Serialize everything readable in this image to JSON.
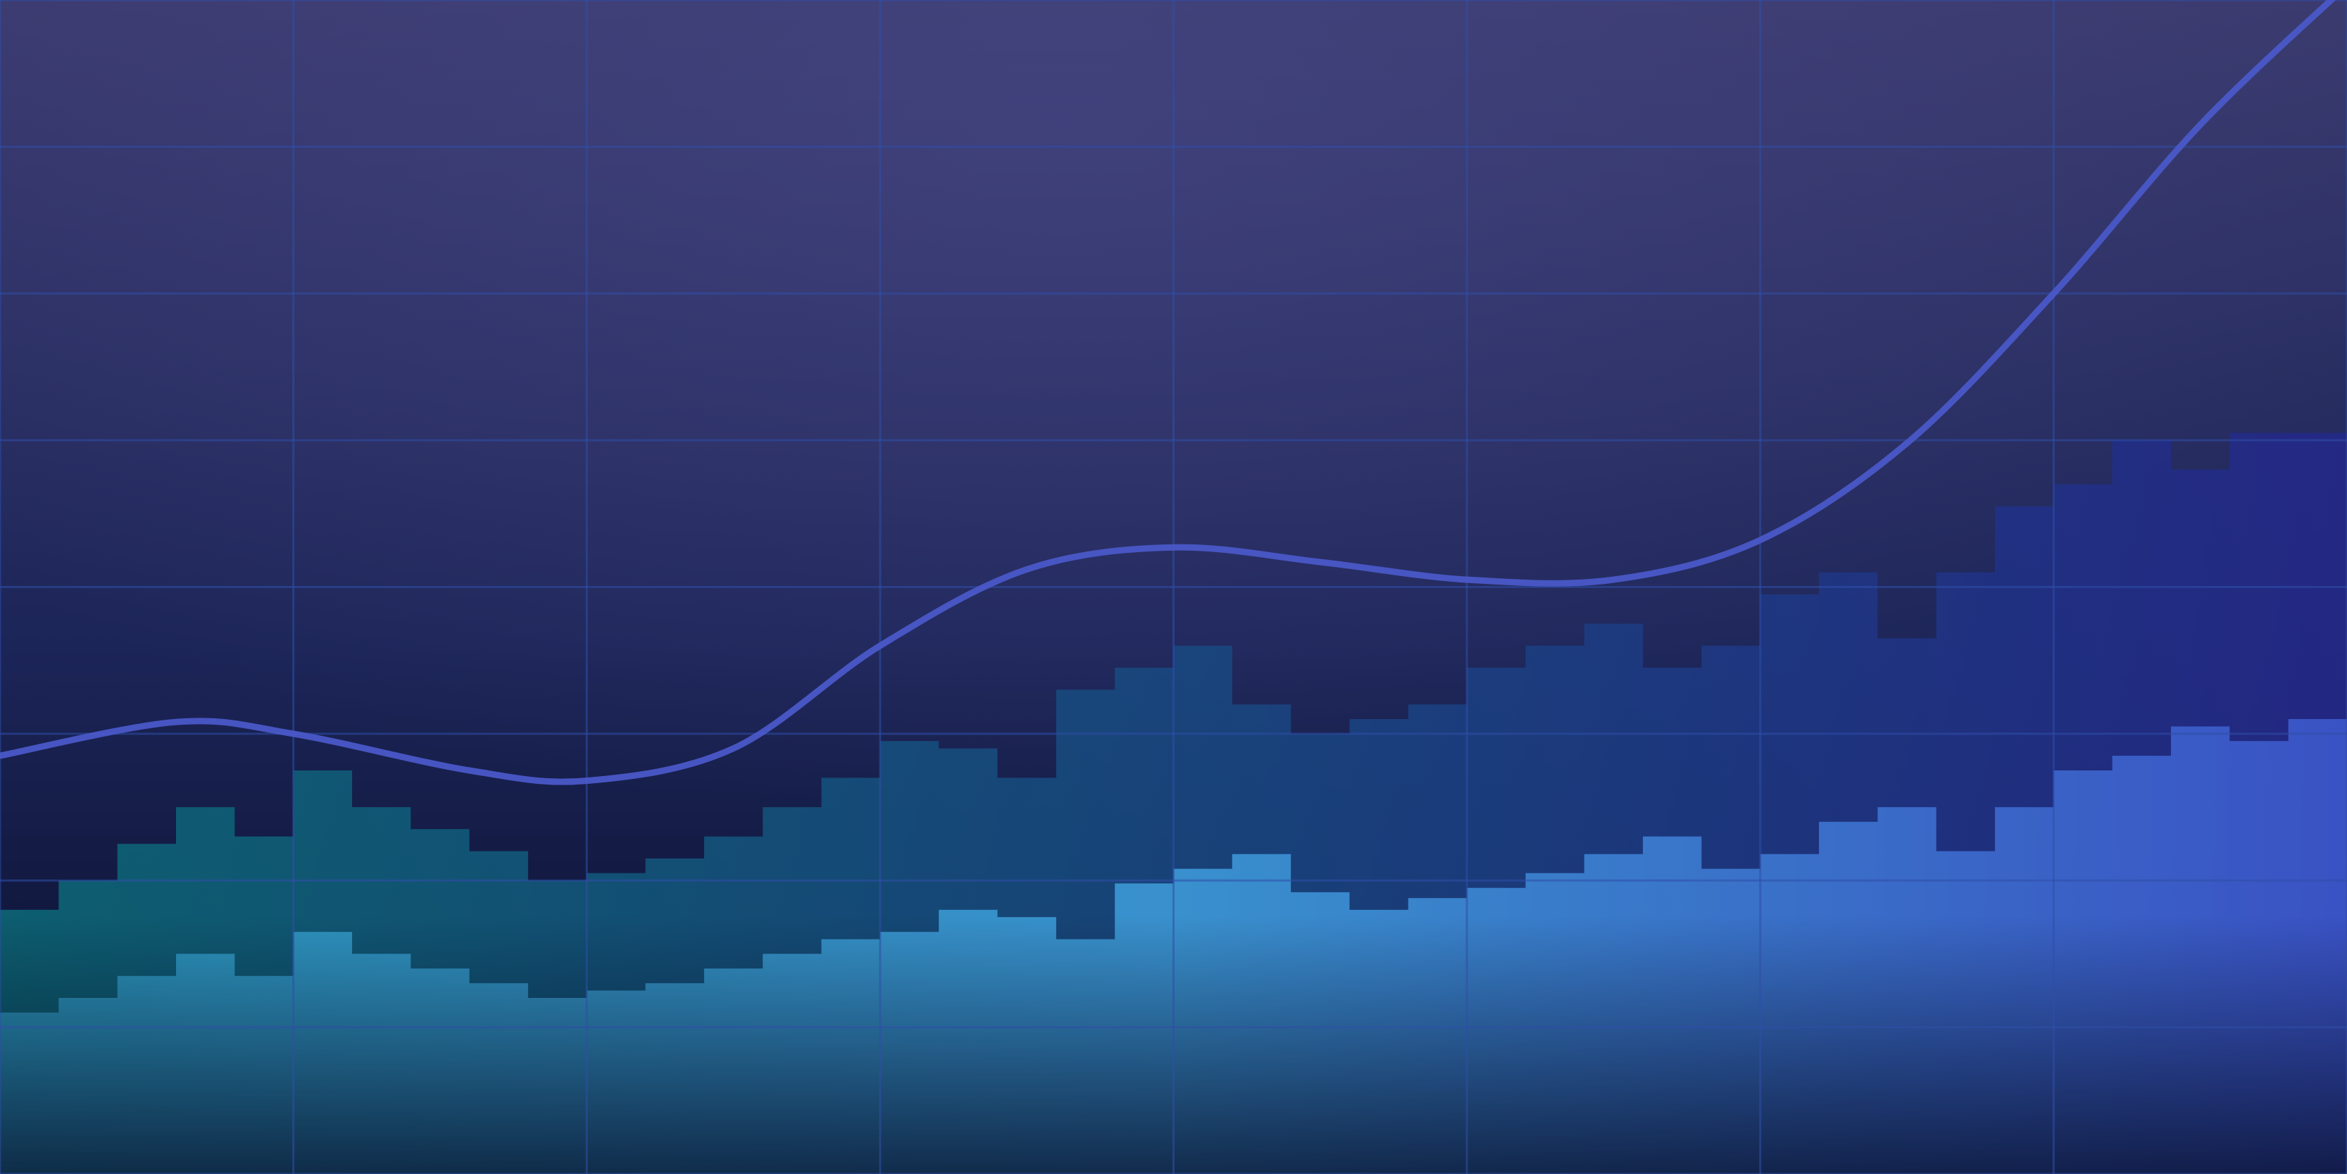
{
  "chart_data": {
    "type": "area",
    "xlim": [
      0,
      40
    ],
    "ylim": [
      0,
      8
    ],
    "grid": true,
    "legend": "none",
    "colors": {
      "background_top": "#3a3a6e",
      "background_bottom": "#070d28",
      "grid": "#2f4fa8",
      "back_area_left": "#0c6a78",
      "back_area_right": "#24288a",
      "front_area_left": "#2e9cc4",
      "front_area_right": "#3e5ad0",
      "trend_line": "#4a58c8"
    },
    "series": [
      {
        "kind": "step-area",
        "values": [
          1.8,
          2.0,
          2.25,
          2.5,
          2.3,
          2.75,
          2.5,
          2.35,
          2.2,
          2.0,
          2.05,
          2.15,
          2.3,
          2.5,
          2.7,
          2.95,
          2.9,
          2.7,
          3.3,
          3.45,
          3.6,
          3.2,
          3.0,
          3.1,
          3.2,
          3.45,
          3.6,
          3.75,
          3.45,
          3.6,
          3.95,
          4.1,
          3.65,
          4.1,
          4.55,
          4.7,
          5.0,
          4.8,
          5.05,
          5.05
        ]
      },
      {
        "kind": "step-area",
        "values": [
          1.1,
          1.2,
          1.35,
          1.5,
          1.35,
          1.65,
          1.5,
          1.4,
          1.3,
          1.2,
          1.25,
          1.3,
          1.4,
          1.5,
          1.6,
          1.65,
          1.8,
          1.75,
          1.6,
          1.98,
          2.08,
          2.18,
          1.92,
          1.8,
          1.88,
          1.95,
          2.05,
          2.18,
          2.3,
          2.08,
          2.18,
          2.4,
          2.5,
          2.2,
          2.5,
          2.75,
          2.85,
          3.05,
          2.95,
          3.1
        ]
      },
      {
        "kind": "line",
        "x": [
          0,
          3,
          5,
          8,
          10,
          12.5,
          15,
          17.5,
          20,
          22.5,
          25,
          27.5,
          30,
          32.5,
          35,
          37.5,
          40
        ],
        "values": [
          2.85,
          3.08,
          3.0,
          2.75,
          2.68,
          2.9,
          3.6,
          4.12,
          4.27,
          4.17,
          4.05,
          4.05,
          4.32,
          4.98,
          6.0,
          7.15,
          8.1
        ]
      }
    ]
  }
}
